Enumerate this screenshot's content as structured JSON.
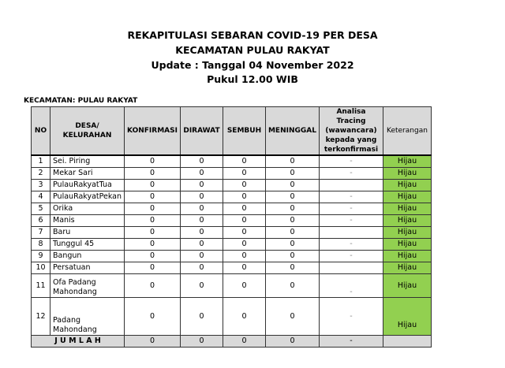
{
  "title_lines": [
    "REKAPITULASI SEBARAN COVID-19 PER DESA",
    "KECAMATAN PULAU RAKYAT",
    "Update : Tanggal 04 November 2022",
    "Pukul 12.00 WIB"
  ],
  "kecamatan_label": "KECAMATAN: PULAU RAKYAT",
  "headers": [
    "NO",
    "DESA/ KELURAHAN",
    "KONFIRMASI",
    "DIRAWAT",
    "SEMBUH",
    "MENINGGAL",
    "Analisa Tracing (wawancara) kepada yang terkonfirmasi",
    "Keterangan"
  ],
  "status_color": "#92d050",
  "rows": [
    {
      "no": "1",
      "desa": "Sei. Piring",
      "konfirmasi": "0",
      "dirawat": "0",
      "sembuh": "0",
      "meninggal": "0",
      "analisa": "-",
      "ket": "Hijau"
    },
    {
      "no": "2",
      "desa": "Mekar Sari",
      "konfirmasi": "0",
      "dirawat": "0",
      "sembuh": "0",
      "meninggal": "0",
      "analisa": "-",
      "ket": "Hijau"
    },
    {
      "no": "3",
      "desa": "PulauRakyatTua",
      "konfirmasi": "0",
      "dirawat": "0",
      "sembuh": "0",
      "meninggal": "0",
      "analisa": "",
      "ket": "Hijau"
    },
    {
      "no": "4",
      "desa": "PulauRakyatPekan",
      "konfirmasi": "0",
      "dirawat": "0",
      "sembuh": "0",
      "meninggal": "0",
      "analisa": "-",
      "ket": "Hijau"
    },
    {
      "no": "5",
      "desa": "Orika",
      "konfirmasi": "0",
      "dirawat": "0",
      "sembuh": "0",
      "meninggal": "0",
      "analisa": "-",
      "ket": "Hijau"
    },
    {
      "no": "6",
      "desa": "Manis",
      "konfirmasi": "0",
      "dirawat": "0",
      "sembuh": "0",
      "meninggal": "0",
      "analisa": "-",
      "ket": "Hijau"
    },
    {
      "no": "7",
      "desa": "Baru",
      "konfirmasi": "0",
      "dirawat": "0",
      "sembuh": "0",
      "meninggal": "0",
      "analisa": "",
      "ket": "Hijau"
    },
    {
      "no": "8",
      "desa": "Tunggul 45",
      "konfirmasi": "0",
      "dirawat": "0",
      "sembuh": "0",
      "meninggal": "0",
      "analisa": "-",
      "ket": "Hijau"
    },
    {
      "no": "9",
      "desa": "Bangun",
      "konfirmasi": "0",
      "dirawat": "0",
      "sembuh": "0",
      "meninggal": "0",
      "analisa": "-",
      "ket": "Hijau"
    },
    {
      "no": "10",
      "desa": "Persatuan",
      "konfirmasi": "0",
      "dirawat": "0",
      "sembuh": "0",
      "meninggal": "0",
      "analisa": "",
      "ket": "Hijau"
    },
    {
      "no": "11",
      "desa": "Ofa Padang Mahondang",
      "konfirmasi": "0",
      "dirawat": "0",
      "sembuh": "0",
      "meninggal": "0",
      "analisa": "-",
      "ket": "Hijau"
    },
    {
      "no": "12",
      "desa": "Padang Mahondang",
      "konfirmasi": "0",
      "dirawat": "0",
      "sembuh": "0",
      "meninggal": "0",
      "analisa": "-",
      "ket": "Hijau"
    }
  ],
  "total": {
    "label": "J U M L A H",
    "konfirmasi": "0",
    "dirawat": "0",
    "sembuh": "0",
    "meninggal": "0",
    "analisa": "-",
    "ket": ""
  }
}
